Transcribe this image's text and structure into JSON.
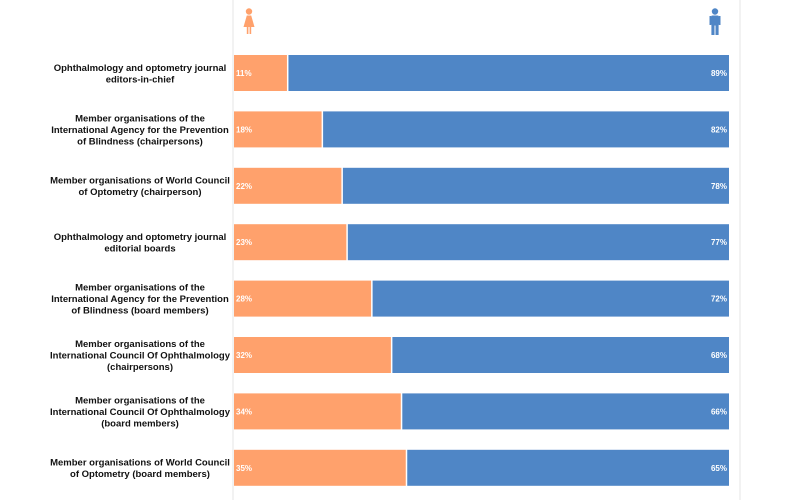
{
  "chart_data": {
    "type": "bar",
    "stacked": true,
    "orientation": "horizontal",
    "xlim": [
      0,
      100
    ],
    "categories": [
      [
        "Ophthalmology and optometry journal",
        "editors-in-chief"
      ],
      [
        "Member organisations of the",
        "International Agency for the Prevention",
        "of Blindness (chairpersons)"
      ],
      [
        "Member organisations of World Council",
        "of Optometry (chairperson)"
      ],
      [
        "Ophthalmology and optometry journal",
        "editorial boards"
      ],
      [
        "Member organisations of the",
        "International Agency for the Prevention",
        "of Blindness (board members)"
      ],
      [
        "Member organisations of the",
        "International Council Of Ophthalmology",
        "(chairpersons)"
      ],
      [
        "Member organisations of the",
        "International Council Of Ophthalmology",
        "(board members)"
      ],
      [
        "Member organisations of World Council",
        "of Optometry (board members)"
      ]
    ],
    "series": [
      {
        "color": "#ffa16c",
        "icon": "female-icon",
        "values": [
          11,
          18,
          22,
          23,
          28,
          32,
          34,
          35
        ],
        "labels": [
          "11%",
          "18%",
          "22%",
          "23%",
          "28%",
          "32%",
          "34%",
          "35%"
        ]
      },
      {
        "color": "#4f86c6",
        "icon": "male-icon",
        "values": [
          89,
          82,
          78,
          77,
          72,
          68,
          66,
          65
        ],
        "labels": [
          "89%",
          "82%",
          "78%",
          "77%",
          "72%",
          "68%",
          "66%",
          "65%"
        ]
      }
    ],
    "grid": false,
    "legend": "icons at top of columns"
  }
}
